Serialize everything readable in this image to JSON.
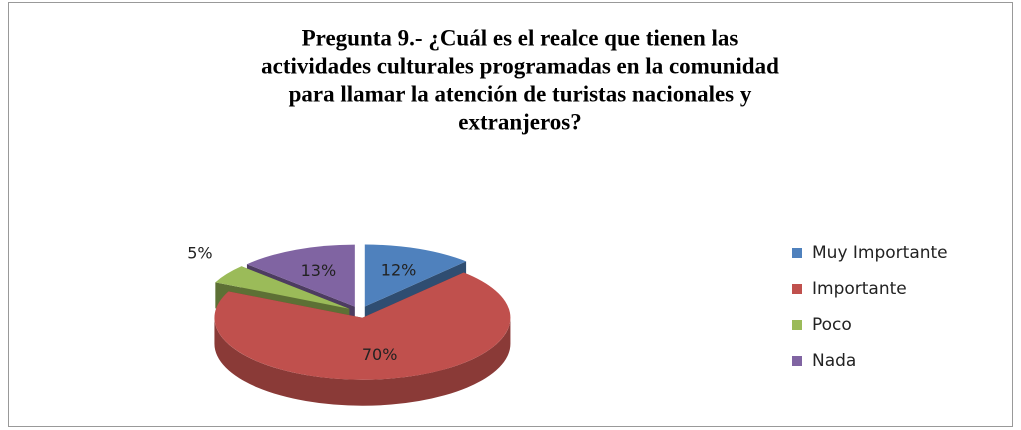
{
  "chart_data": {
    "type": "pie",
    "title": [
      "Pregunta 9.- ¿Cuál es el realce que tienen las",
      "actividades culturales programadas en la comunidad",
      "para llamar la atención de turistas nacionales y",
      "extranjeros?"
    ],
    "categories": [
      "Muy Importante",
      "Importante",
      "Poco",
      "Nada"
    ],
    "values": [
      12,
      70,
      5,
      13
    ],
    "value_labels": [
      "12%",
      "70%",
      "5%",
      "13%"
    ],
    "colors": [
      "#4f81bd",
      "#c0504d",
      "#9bbb59",
      "#8064a2"
    ],
    "legend": "right"
  }
}
